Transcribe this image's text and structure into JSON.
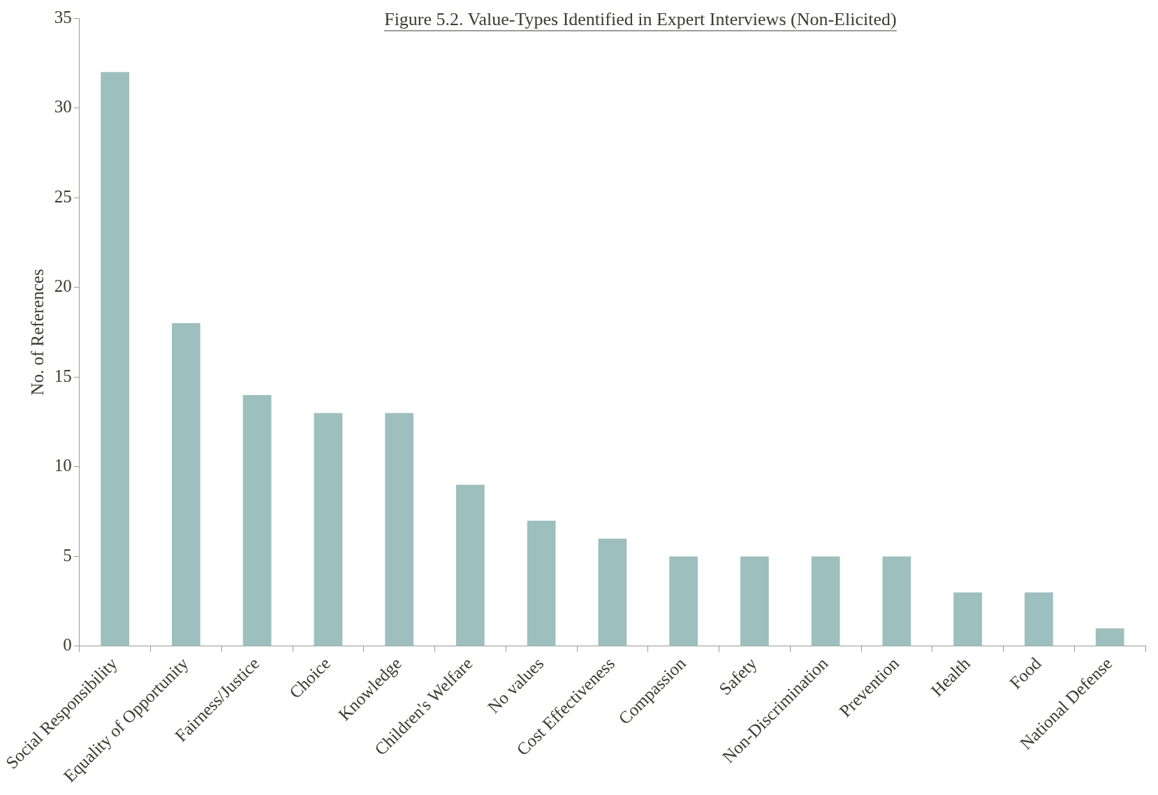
{
  "chart_data": {
    "type": "bar",
    "title": "Figure 5.2. Value-Types Identified in Expert Interviews (Non-Elicited)",
    "ylabel": "No. of References",
    "categories": [
      "Social Responsibility",
      "Equality of Opportunity",
      "Fairness/Justice",
      "Choice",
      "Knowledge",
      "Children's Welfare",
      "No values",
      "Cost Effectiveness",
      "Compassion",
      "Safety",
      "Non-Discrimination",
      "Prevention",
      "Health",
      "Food",
      "National Defense"
    ],
    "values": [
      32,
      18,
      14,
      13,
      13,
      9,
      7,
      6,
      5,
      5,
      5,
      5,
      3,
      3,
      1
    ],
    "color": "#9dbfbd",
    "ylim": [
      0,
      35
    ],
    "yticks": [
      0,
      5,
      10,
      15,
      20,
      25,
      30,
      35
    ],
    "grid": false
  }
}
